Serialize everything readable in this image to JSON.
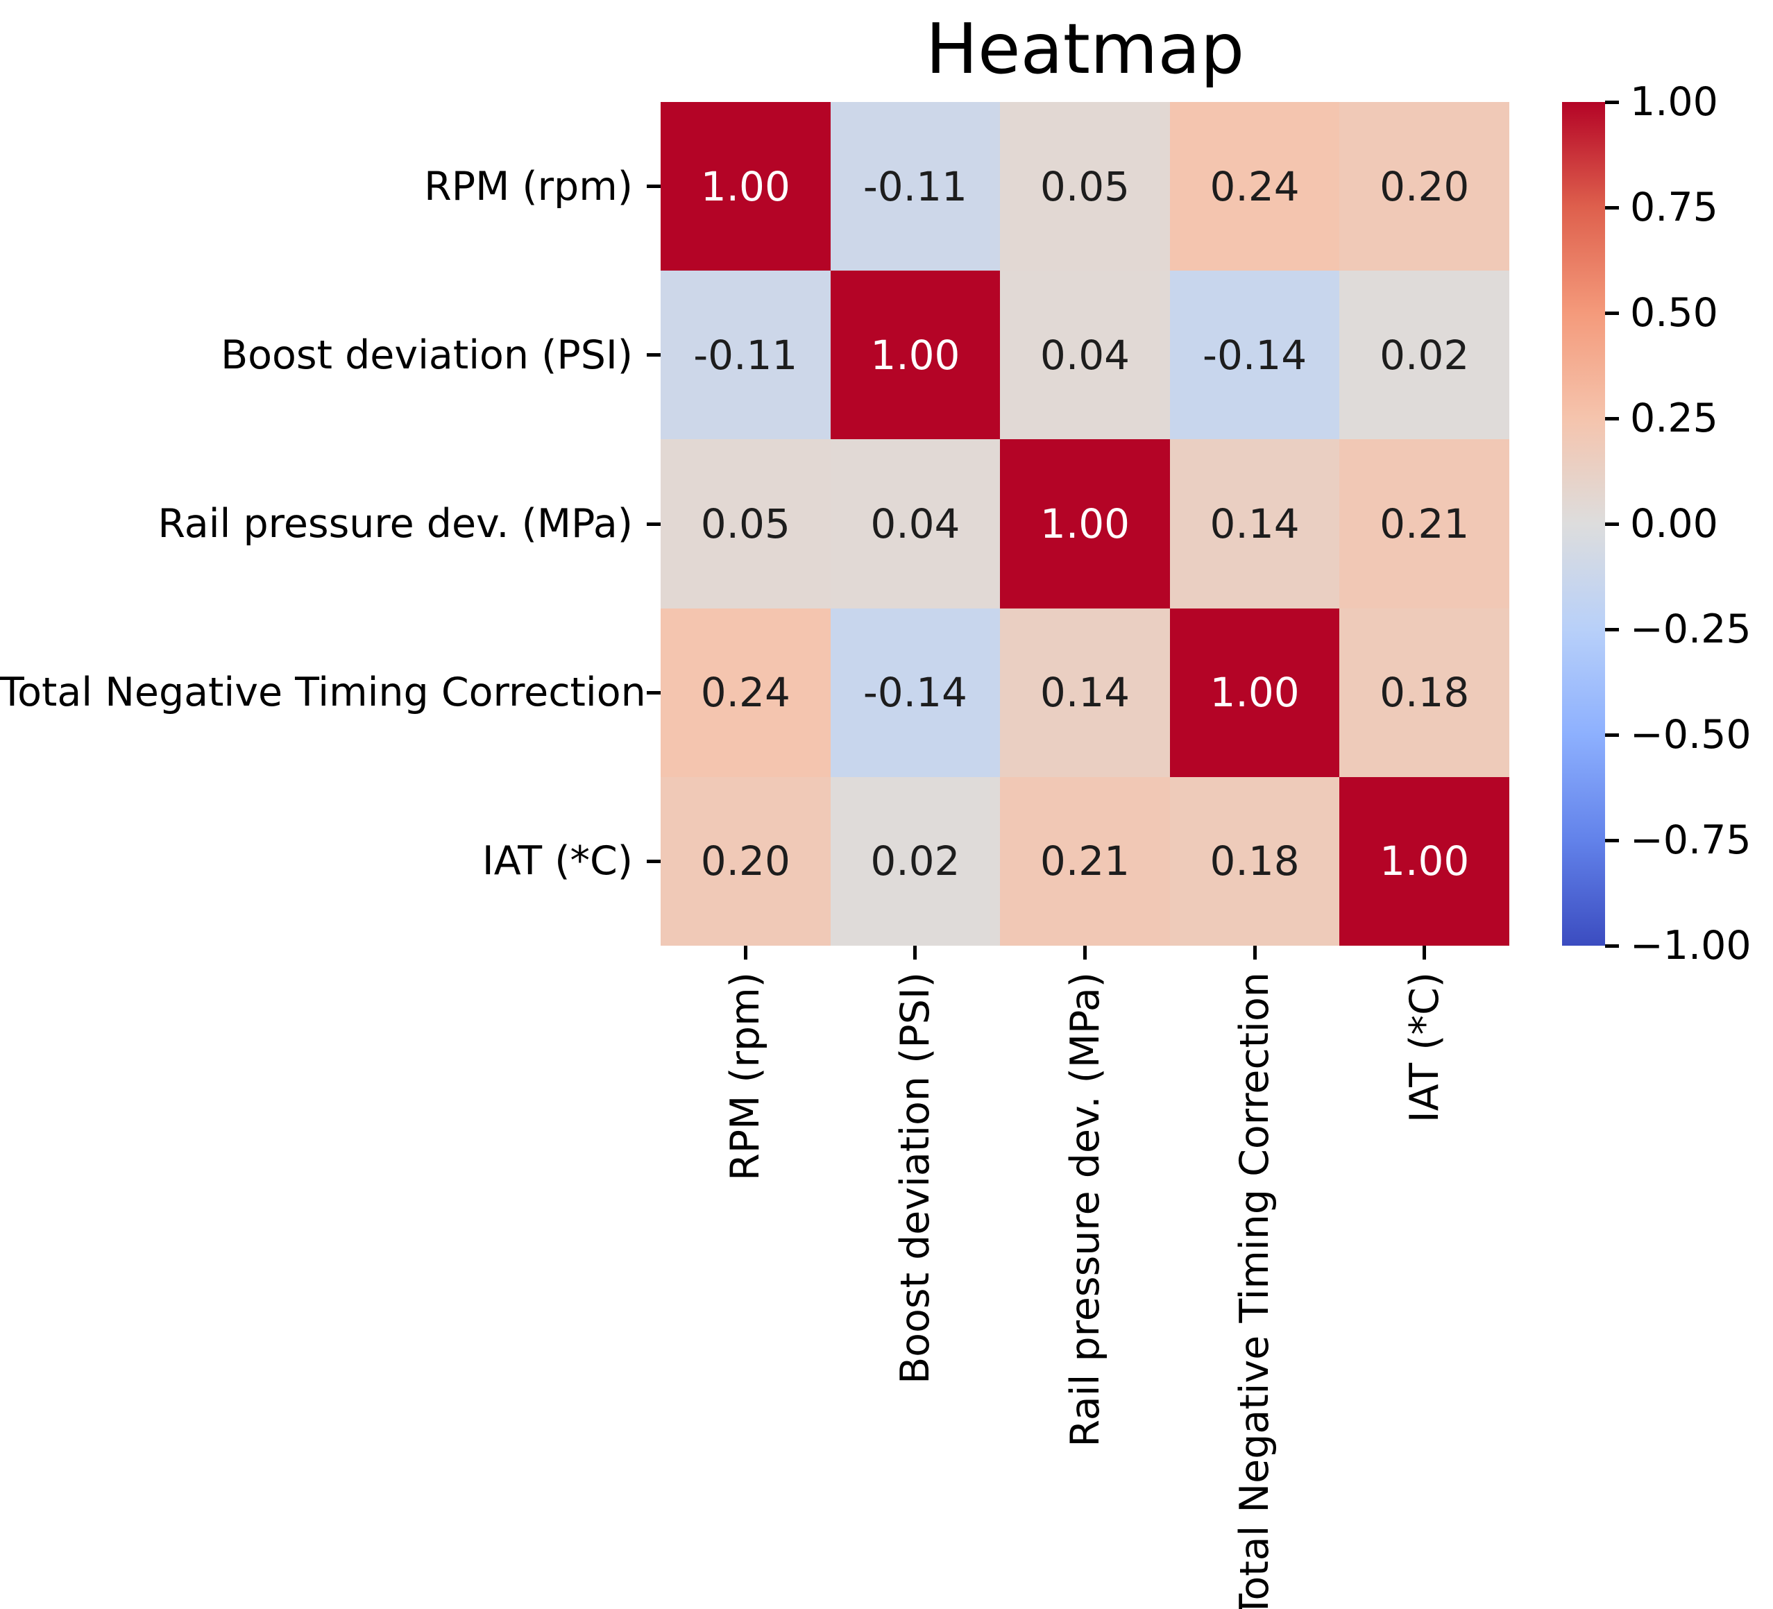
{
  "title": "Heatmap",
  "colors": {
    "background": "#ffffff",
    "tick_color": "#000000",
    "label_color": "#000000",
    "annot_dark": "#1d1d1d",
    "annot_light": "#ffffff"
  },
  "chart_data": {
    "type": "heatmap",
    "title": "Heatmap",
    "categories": [
      "RPM (rpm)",
      "Boost deviation (PSI)",
      "Rail pressure dev. (MPa)",
      "Total Negative Timing Correction",
      "IAT (*C)"
    ],
    "matrix": [
      [
        1.0,
        -0.11,
        0.05,
        0.24,
        0.2
      ],
      [
        -0.11,
        1.0,
        0.04,
        -0.14,
        0.02
      ],
      [
        0.05,
        0.04,
        1.0,
        0.14,
        0.21
      ],
      [
        0.24,
        -0.14,
        0.14,
        1.0,
        0.18
      ],
      [
        0.2,
        0.02,
        0.21,
        0.18,
        1.0
      ]
    ],
    "vmin": -1.0,
    "vmax": 1.0,
    "value_decimals": 2,
    "grid_on": false,
    "legend_position": "right-colorbar",
    "colorbar": {
      "tick_values": [
        1.0,
        0.75,
        0.5,
        0.25,
        0.0,
        -0.25,
        -0.5,
        -0.75,
        -1.0
      ],
      "tick_labels": [
        "1.00",
        "0.75",
        "0.50",
        "0.25",
        "0.00",
        "−0.25",
        "−0.50",
        "−0.75",
        "−1.00"
      ]
    },
    "colormap": {
      "name": "coolwarm",
      "stops": [
        {
          "t": 0.0,
          "color": "#3b4cc0"
        },
        {
          "t": 0.125,
          "color": "#6282ea"
        },
        {
          "t": 0.25,
          "color": "#8db0fe"
        },
        {
          "t": 0.375,
          "color": "#b8d0f9"
        },
        {
          "t": 0.5,
          "color": "#dddddd"
        },
        {
          "t": 0.625,
          "color": "#f5c4ad"
        },
        {
          "t": 0.75,
          "color": "#f49a7b"
        },
        {
          "t": 0.875,
          "color": "#de604d"
        },
        {
          "t": 1.0,
          "color": "#b40426"
        }
      ]
    }
  }
}
